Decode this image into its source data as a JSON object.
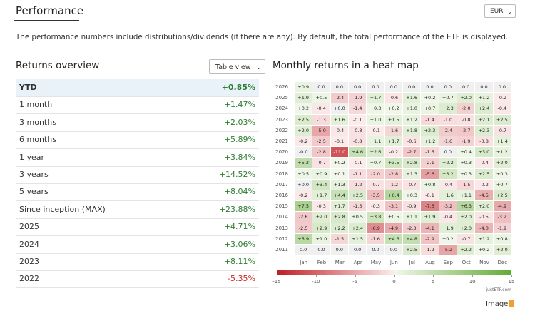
{
  "header": {
    "title": "Performance",
    "currency": "EUR",
    "description": "The performance numbers include distributions/dividends (if there are any). By default, the total performance of the ETF is displayed."
  },
  "overview": {
    "title": "Returns overview",
    "view_select": "Table view",
    "rows": [
      [
        "YTD",
        "+0.85%"
      ],
      [
        "1 month",
        "+1.47%"
      ],
      [
        "3 months",
        "+2.03%"
      ],
      [
        "6 months",
        "+5.89%"
      ],
      [
        "1 year",
        "+3.84%"
      ],
      [
        "3 years",
        "+14.52%"
      ],
      [
        "5 years",
        "+8.04%"
      ],
      [
        "Since inception (MAX)",
        "+23.88%"
      ],
      [
        "2025",
        "+4.71%"
      ],
      [
        "2024",
        "+3.06%"
      ],
      [
        "2023",
        "+8.11%"
      ],
      [
        "2022",
        "-5.35%"
      ]
    ]
  },
  "heatmap": {
    "title": "Monthly returns in a heat map",
    "years": [
      "2026",
      "2025",
      "2024",
      "2023",
      "2022",
      "2021",
      "2020",
      "2019",
      "2018",
      "2017",
      "2016",
      "2015",
      "2014",
      "2013",
      "2012",
      "2011"
    ],
    "months": [
      "Jan",
      "Feb",
      "Mar",
      "Apr",
      "May",
      "Jun",
      "Jul",
      "Aug",
      "Sep",
      "Oct",
      "Nov",
      "Dec"
    ],
    "cells": [
      [
        "+0.9",
        "0.0",
        "0.0",
        "0.0",
        "0.0",
        "0.0",
        "0.0",
        "0.0",
        "0.0",
        "0.0",
        "0.0",
        "0.0"
      ],
      [
        "+1.9",
        "+0.5",
        "-2.4",
        "-1.9",
        "+1.7",
        "-0.6",
        "+1.6",
        "+0.2",
        "+0.7",
        "+2.0",
        "+1.2",
        "-0.2"
      ],
      [
        "+0.2",
        "-0.4",
        "+0.0",
        "-1.4",
        "+0.3",
        "+0.2",
        "+1.0",
        "+0.7",
        "+2.3",
        "-2.0",
        "+2.4",
        "-0.4"
      ],
      [
        "+2.5",
        "-1.3",
        "+1.6",
        "-0.1",
        "+1.0",
        "+1.5",
        "+1.2",
        "-1.4",
        "-1.0",
        "-0.8",
        "+2.1",
        "+2.5"
      ],
      [
        "+2.0",
        "-5.0",
        "-0.4",
        "-0.8",
        "-0.1",
        "-1.6",
        "+1.8",
        "+2.3",
        "-2.4",
        "-2.7",
        "+2.3",
        "-0.7"
      ],
      [
        "-0.2",
        "-2.5",
        "-0.1",
        "-0.8",
        "+1.1",
        "+1.7",
        "-0.6",
        "+1.2",
        "-1.6",
        "-1.9",
        "-0.8",
        "+1.4"
      ],
      [
        "-0.0",
        "-2.8",
        "-11.0",
        "+4.6",
        "+2.6",
        "-0.2",
        "-2.7",
        "-1.5",
        "0.0",
        "+0.4",
        "+3.0",
        "+1.2"
      ],
      [
        "+5.2",
        "-0.7",
        "+0.2",
        "-0.1",
        "+0.7",
        "+3.5",
        "+2.8",
        "-2.1",
        "+2.2",
        "+0.3",
        "-0.4",
        "+2.0"
      ],
      [
        "+0.5",
        "+0.9",
        "+0.1",
        "-1.1",
        "-2.0",
        "-2.8",
        "+1.3",
        "-5.6",
        "+3.2",
        "+0.3",
        "+2.5",
        "+0.3"
      ],
      [
        "+0.0",
        "+3.4",
        "+1.3",
        "-1.2",
        "-0.7",
        "-1.2",
        "-0.7",
        "+0.8",
        "-0.4",
        "-1.5",
        "-0.2",
        "+0.7"
      ],
      [
        "-0.2",
        "+1.7",
        "+4.4",
        "+2.5",
        "-3.5",
        "+6.4",
        "+0.3",
        "-0.1",
        "+1.6",
        "+1.1",
        "-4.5",
        "+2.5"
      ],
      [
        "+7.5",
        "-0.3",
        "+1.7",
        "-1.5",
        "-0.3",
        "-3.1",
        "-0.9",
        "-7.6",
        "-3.2",
        "+6.3",
        "+2.0",
        "-4.9"
      ],
      [
        "-2.6",
        "+2.0",
        "+2.8",
        "+0.5",
        "+3.8",
        "+0.5",
        "+1.1",
        "+1.9",
        "-0.4",
        "+2.0",
        "-0.5",
        "-3.2"
      ],
      [
        "-2.5",
        "+2.9",
        "+2.2",
        "+2.4",
        "-6.9",
        "-4.9",
        "-2.3",
        "-4.1",
        "+1.9",
        "+2.0",
        "-4.0",
        "-1.9"
      ],
      [
        "+5.9",
        "+1.0",
        "-1.5",
        "+1.5",
        "-1.6",
        "+4.6",
        "+4.8",
        "-2.9",
        "+0.2",
        "-0.7",
        "+1.2",
        "+0.8"
      ],
      [
        "0.0",
        "0.0",
        "0.0",
        "0.0",
        "0.0",
        "0.0",
        "+2.5",
        "-1.2",
        "-5.2",
        "+2.2",
        "+0.2",
        "+2.0"
      ]
    ],
    "scale_ticks": [
      -15,
      -10,
      -5,
      0,
      5,
      10,
      15
    ],
    "source": "justETF.com"
  },
  "image_link": "Image"
}
